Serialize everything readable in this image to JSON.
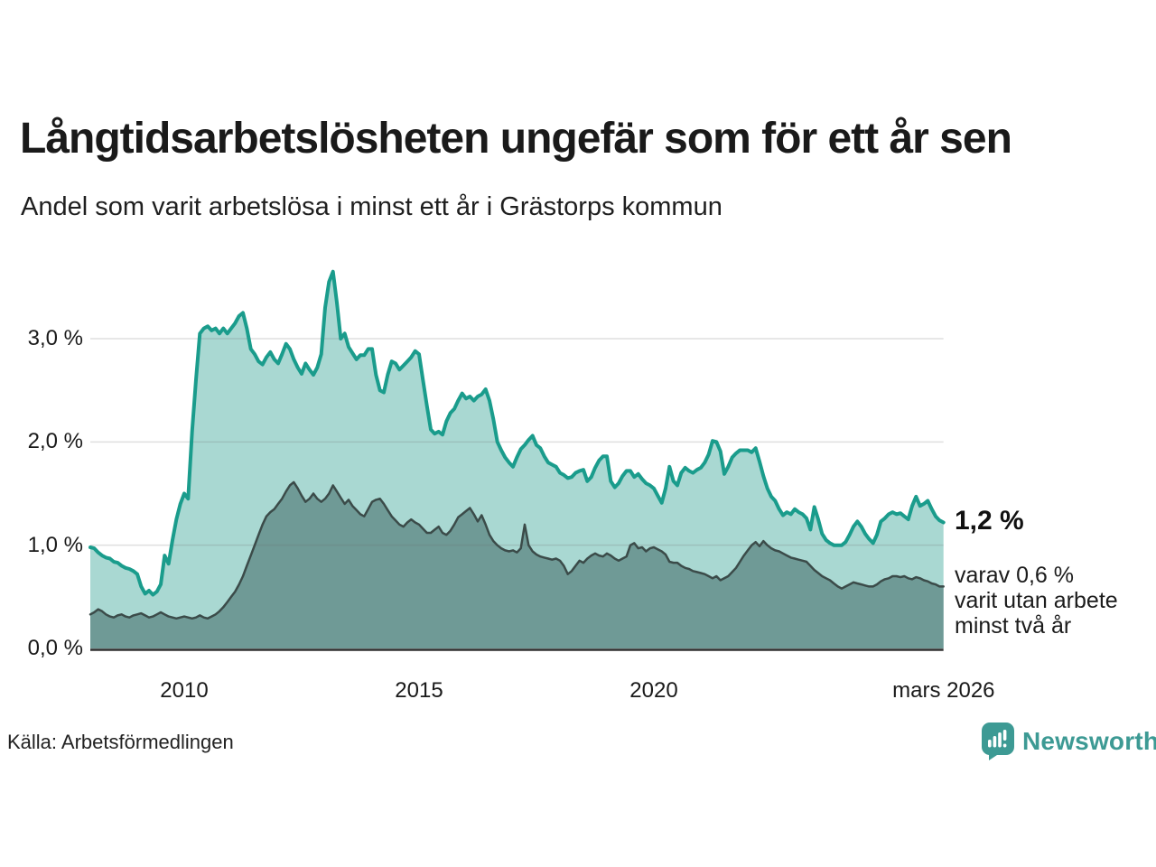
{
  "header": {
    "title": "Långtidsarbetslösheten ungefär som för ett år sen",
    "subtitle": "Andel som varit arbetslösa i minst ett år i Grästorps kommun"
  },
  "chart_data": {
    "type": "area",
    "title": "Långtidsarbetslösheten ungefär som för ett år sen",
    "subtitle": "Andel som varit arbetslösa i minst ett år i Grästorps kommun",
    "x_unit": "year, monthly points",
    "x0": 2008.0,
    "dx": 0.0833333,
    "xlim": [
      2008.0,
      2026.17
    ],
    "ylim": [
      0,
      3.8
    ],
    "grid": "horizontal",
    "legend": "none",
    "x_ticks": [
      {
        "value": 2010,
        "label": "2010"
      },
      {
        "value": 2015,
        "label": "2015"
      },
      {
        "value": 2020,
        "label": "2020"
      },
      {
        "value": 2026.17,
        "label": "mars 2026"
      }
    ],
    "y_ticks": [
      {
        "value": 0,
        "label": "0,0 %"
      },
      {
        "value": 1,
        "label": "1,0 %"
      },
      {
        "value": 2,
        "label": "2,0 %"
      },
      {
        "value": 3,
        "label": "3,0 %"
      }
    ],
    "series": [
      {
        "id": "minst-ett-ar",
        "name": "Andel arbetslösa i minst ett år",
        "color": "#1a9c8c",
        "fill": "#a9d8d2",
        "end_value_pct": 1.2,
        "values": [
          0.98,
          0.97,
          0.93,
          0.9,
          0.88,
          0.87,
          0.84,
          0.83,
          0.8,
          0.78,
          0.77,
          0.75,
          0.72,
          0.6,
          0.53,
          0.56,
          0.52,
          0.55,
          0.62,
          0.9,
          0.82,
          1.05,
          1.25,
          1.4,
          1.5,
          1.45,
          2.1,
          2.6,
          3.05,
          3.1,
          3.12,
          3.08,
          3.1,
          3.05,
          3.1,
          3.05,
          3.1,
          3.15,
          3.22,
          3.25,
          3.1,
          2.9,
          2.85,
          2.78,
          2.75,
          2.82,
          2.87,
          2.8,
          2.76,
          2.85,
          2.95,
          2.9,
          2.8,
          2.72,
          2.66,
          2.76,
          2.7,
          2.65,
          2.72,
          2.85,
          3.3,
          3.55,
          3.65,
          3.35,
          3.0,
          3.05,
          2.92,
          2.86,
          2.8,
          2.84,
          2.84,
          2.9,
          2.9,
          2.65,
          2.5,
          2.48,
          2.65,
          2.78,
          2.76,
          2.7,
          2.74,
          2.78,
          2.82,
          2.88,
          2.85,
          2.6,
          2.35,
          2.12,
          2.08,
          2.1,
          2.07,
          2.2,
          2.28,
          2.32,
          2.4,
          2.47,
          2.42,
          2.44,
          2.4,
          2.44,
          2.46,
          2.51,
          2.4,
          2.22,
          2.0,
          1.92,
          1.85,
          1.8,
          1.76,
          1.85,
          1.93,
          1.97,
          2.02,
          2.06,
          1.97,
          1.94,
          1.86,
          1.8,
          1.78,
          1.76,
          1.7,
          1.68,
          1.65,
          1.66,
          1.7,
          1.72,
          1.73,
          1.62,
          1.66,
          1.75,
          1.82,
          1.86,
          1.86,
          1.62,
          1.56,
          1.6,
          1.67,
          1.72,
          1.72,
          1.66,
          1.69,
          1.64,
          1.6,
          1.58,
          1.55,
          1.48,
          1.41,
          1.55,
          1.76,
          1.62,
          1.58,
          1.7,
          1.75,
          1.72,
          1.7,
          1.73,
          1.75,
          1.8,
          1.88,
          2.01,
          2.0,
          1.91,
          1.69,
          1.76,
          1.85,
          1.89,
          1.92,
          1.92,
          1.92,
          1.9,
          1.94,
          1.81,
          1.67,
          1.55,
          1.47,
          1.43,
          1.35,
          1.29,
          1.32,
          1.3,
          1.35,
          1.32,
          1.3,
          1.26,
          1.15,
          1.37,
          1.25,
          1.11,
          1.05,
          1.02,
          1.0,
          1.0,
          1.0,
          1.03,
          1.1,
          1.18,
          1.23,
          1.18,
          1.11,
          1.06,
          1.02,
          1.1,
          1.23,
          1.26,
          1.3,
          1.32,
          1.3,
          1.31,
          1.28,
          1.25,
          1.38,
          1.47,
          1.38,
          1.4,
          1.43,
          1.35,
          1.28,
          1.24,
          1.22
        ]
      },
      {
        "id": "minst-tva-ar",
        "name": "Andel som varit utan arbete minst två år",
        "color": "#3b4b49",
        "fill": "#6f9a96",
        "end_value_pct": 0.6,
        "values": [
          0.33,
          0.35,
          0.38,
          0.36,
          0.33,
          0.31,
          0.3,
          0.32,
          0.33,
          0.31,
          0.3,
          0.32,
          0.33,
          0.34,
          0.32,
          0.3,
          0.31,
          0.33,
          0.35,
          0.33,
          0.31,
          0.3,
          0.29,
          0.3,
          0.31,
          0.3,
          0.29,
          0.3,
          0.32,
          0.3,
          0.29,
          0.31,
          0.33,
          0.36,
          0.4,
          0.45,
          0.5,
          0.55,
          0.62,
          0.7,
          0.8,
          0.9,
          1.0,
          1.1,
          1.2,
          1.28,
          1.32,
          1.35,
          1.4,
          1.45,
          1.52,
          1.58,
          1.61,
          1.55,
          1.48,
          1.42,
          1.45,
          1.5,
          1.45,
          1.42,
          1.45,
          1.5,
          1.58,
          1.52,
          1.46,
          1.4,
          1.44,
          1.38,
          1.34,
          1.3,
          1.28,
          1.35,
          1.42,
          1.44,
          1.45,
          1.4,
          1.34,
          1.28,
          1.24,
          1.2,
          1.18,
          1.22,
          1.25,
          1.22,
          1.2,
          1.16,
          1.12,
          1.12,
          1.15,
          1.18,
          1.12,
          1.1,
          1.14,
          1.2,
          1.27,
          1.3,
          1.33,
          1.36,
          1.3,
          1.23,
          1.29,
          1.2,
          1.1,
          1.04,
          1.0,
          0.97,
          0.95,
          0.94,
          0.95,
          0.93,
          0.97,
          1.2,
          1.0,
          0.94,
          0.91,
          0.89,
          0.88,
          0.87,
          0.86,
          0.87,
          0.85,
          0.8,
          0.72,
          0.75,
          0.8,
          0.85,
          0.83,
          0.87,
          0.9,
          0.92,
          0.9,
          0.89,
          0.92,
          0.9,
          0.87,
          0.85,
          0.87,
          0.89,
          1.0,
          1.02,
          0.97,
          0.98,
          0.94,
          0.97,
          0.98,
          0.96,
          0.94,
          0.91,
          0.84,
          0.83,
          0.83,
          0.8,
          0.78,
          0.77,
          0.75,
          0.74,
          0.73,
          0.72,
          0.7,
          0.68,
          0.7,
          0.66,
          0.68,
          0.7,
          0.74,
          0.78,
          0.84,
          0.9,
          0.95,
          1.0,
          1.03,
          0.99,
          1.04,
          1.0,
          0.97,
          0.95,
          0.94,
          0.92,
          0.9,
          0.88,
          0.87,
          0.86,
          0.85,
          0.84,
          0.8,
          0.76,
          0.73,
          0.7,
          0.68,
          0.66,
          0.63,
          0.6,
          0.58,
          0.6,
          0.62,
          0.64,
          0.63,
          0.62,
          0.61,
          0.6,
          0.6,
          0.62,
          0.65,
          0.67,
          0.68,
          0.7,
          0.7,
          0.69,
          0.7,
          0.68,
          0.67,
          0.69,
          0.68,
          0.66,
          0.65,
          0.63,
          0.62,
          0.6,
          0.6
        ]
      }
    ],
    "annotations": {
      "end_value": "1,2 %",
      "note_lines": [
        "varav 0,6 %",
        "varit utan arbete",
        "minst två år"
      ]
    }
  },
  "footer": {
    "source": "Källa: Arbetsförmedlingen",
    "brand": "Newsworthy",
    "brand_color": "#3d9a94"
  }
}
